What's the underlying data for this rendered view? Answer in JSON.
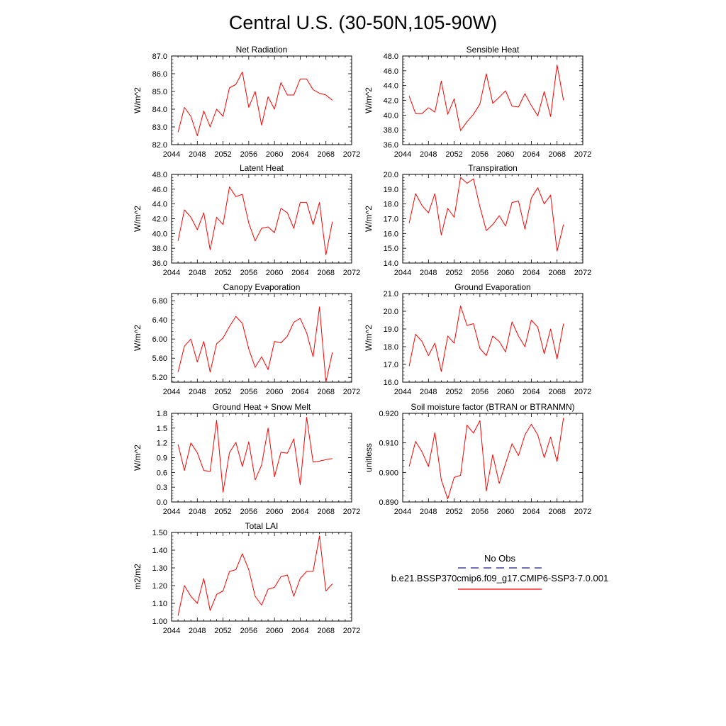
{
  "figure": {
    "title": "Central U.S. (30-50N,105-90W)"
  },
  "legend": {
    "obs_label": "No Obs",
    "obs_color": "#1a1a8c",
    "model_label": "b.e21.BSSP370cmip6.f09_g17.CMIP6-SSP3-7.0.001",
    "model_color": "#ff0000"
  },
  "chart_data": [
    {
      "type": "line",
      "title": "Net Radiation",
      "ylabel": "W/m^2",
      "xlim": [
        2044,
        2072
      ],
      "xticks": [
        2044,
        2048,
        2052,
        2056,
        2060,
        2064,
        2068,
        2072
      ],
      "ylim": [
        82.0,
        87.0
      ],
      "yticks": [
        82.0,
        83.0,
        84.0,
        85.0,
        86.0,
        87.0
      ],
      "ytick_labels": [
        "82.0",
        "83.0",
        "84.0",
        "85.0",
        "86.0",
        "87.0"
      ],
      "grid": false,
      "series": [
        {
          "x": [
            2045,
            2046,
            2047,
            2048,
            2049,
            2050,
            2051,
            2052,
            2053,
            2054,
            2055,
            2056,
            2057,
            2058,
            2059,
            2060,
            2061,
            2062,
            2063,
            2064,
            2065,
            2066,
            2067,
            2068,
            2069
          ],
          "values": [
            82.7,
            84.1,
            83.6,
            82.5,
            83.9,
            83.0,
            84.0,
            83.6,
            85.2,
            85.4,
            86.1,
            84.1,
            85.0,
            83.1,
            84.7,
            84.0,
            85.5,
            84.8,
            84.8,
            85.7,
            85.7,
            85.1,
            84.9,
            84.8,
            84.5
          ]
        }
      ]
    },
    {
      "type": "line",
      "title": "Sensible Heat",
      "ylabel": "W/m^2",
      "xlim": [
        2044,
        2072
      ],
      "xticks": [
        2044,
        2048,
        2052,
        2056,
        2060,
        2064,
        2068,
        2072
      ],
      "ylim": [
        36.0,
        48.0
      ],
      "yticks": [
        36.0,
        38.0,
        40.0,
        42.0,
        44.0,
        46.0,
        48.0
      ],
      "ytick_labels": [
        "36.0",
        "38.0",
        "40.0",
        "42.0",
        "44.0",
        "46.0",
        "48.0"
      ],
      "grid": false,
      "series": [
        {
          "x": [
            2045,
            2046,
            2047,
            2048,
            2049,
            2050,
            2051,
            2052,
            2053,
            2054,
            2055,
            2056,
            2057,
            2058,
            2059,
            2060,
            2061,
            2062,
            2063,
            2064,
            2065,
            2066,
            2067,
            2068,
            2069
          ],
          "values": [
            42.6,
            40.2,
            40.2,
            41.0,
            40.4,
            44.6,
            40.1,
            42.2,
            37.9,
            39.1,
            40.1,
            41.5,
            45.6,
            41.6,
            42.4,
            43.3,
            41.2,
            41.1,
            42.9,
            41.3,
            39.9,
            43.2,
            39.8,
            46.8,
            42.0
          ]
        }
      ]
    },
    {
      "type": "line",
      "title": "Latent Heat",
      "ylabel": "W/m^2",
      "xlim": [
        2044,
        2072
      ],
      "xticks": [
        2044,
        2048,
        2052,
        2056,
        2060,
        2064,
        2068,
        2072
      ],
      "ylim": [
        36.0,
        48.0
      ],
      "yticks": [
        36.0,
        38.0,
        40.0,
        42.0,
        44.0,
        46.0,
        48.0
      ],
      "ytick_labels": [
        "36.0",
        "38.0",
        "40.0",
        "42.0",
        "44.0",
        "46.0",
        "48.0"
      ],
      "grid": false,
      "series": [
        {
          "x": [
            2045,
            2046,
            2047,
            2048,
            2049,
            2050,
            2051,
            2052,
            2053,
            2054,
            2055,
            2056,
            2057,
            2058,
            2059,
            2060,
            2061,
            2062,
            2063,
            2064,
            2065,
            2066,
            2067,
            2068,
            2069
          ],
          "values": [
            39.0,
            43.2,
            42.2,
            40.5,
            42.8,
            37.8,
            42.2,
            41.2,
            46.3,
            45.0,
            45.3,
            41.4,
            39.0,
            40.7,
            40.9,
            40.1,
            43.4,
            42.8,
            40.7,
            44.2,
            44.2,
            41.2,
            44.2,
            37.1,
            41.6
          ]
        }
      ]
    },
    {
      "type": "line",
      "title": "Transpiration",
      "ylabel": "W/m^2",
      "xlim": [
        2044,
        2072
      ],
      "xticks": [
        2044,
        2048,
        2052,
        2056,
        2060,
        2064,
        2068,
        2072
      ],
      "ylim": [
        14.0,
        20.0
      ],
      "yticks": [
        14.0,
        15.0,
        16.0,
        17.0,
        18.0,
        19.0,
        20.0
      ],
      "ytick_labels": [
        "14.0",
        "15.0",
        "16.0",
        "17.0",
        "18.0",
        "19.0",
        "20.0"
      ],
      "grid": false,
      "series": [
        {
          "x": [
            2045,
            2046,
            2047,
            2048,
            2049,
            2050,
            2051,
            2052,
            2053,
            2054,
            2055,
            2056,
            2057,
            2058,
            2059,
            2060,
            2061,
            2062,
            2063,
            2064,
            2065,
            2066,
            2067,
            2068,
            2069
          ],
          "values": [
            16.7,
            18.7,
            17.9,
            17.4,
            18.7,
            15.9,
            17.7,
            17.1,
            19.8,
            19.4,
            19.7,
            17.8,
            16.2,
            16.6,
            17.2,
            16.5,
            18.1,
            18.2,
            16.3,
            18.4,
            19.1,
            18.0,
            18.6,
            14.8,
            16.6
          ]
        }
      ]
    },
    {
      "type": "line",
      "title": "Canopy Evaporation",
      "ylabel": "W/m^2",
      "xlim": [
        2044,
        2072
      ],
      "xticks": [
        2044,
        2048,
        2052,
        2056,
        2060,
        2064,
        2068,
        2072
      ],
      "ylim": [
        5.1,
        6.95
      ],
      "yticks": [
        5.2,
        5.6,
        6.0,
        6.4,
        6.8
      ],
      "ytick_labels": [
        "5.20",
        "5.60",
        "6.00",
        "6.40",
        "6.80"
      ],
      "grid": false,
      "series": [
        {
          "x": [
            2045,
            2046,
            2047,
            2048,
            2049,
            2050,
            2051,
            2052,
            2053,
            2054,
            2055,
            2056,
            2057,
            2058,
            2059,
            2060,
            2061,
            2062,
            2063,
            2064,
            2065,
            2066,
            2067,
            2068,
            2069
          ],
          "values": [
            5.31,
            5.85,
            6.0,
            5.52,
            5.95,
            5.31,
            5.9,
            6.02,
            6.26,
            6.47,
            6.33,
            5.79,
            5.41,
            5.63,
            5.36,
            5.95,
            5.92,
            6.06,
            6.35,
            6.43,
            6.13,
            5.63,
            6.67,
            5.1,
            5.72
          ]
        }
      ]
    },
    {
      "type": "line",
      "title": "Ground Evaporation",
      "ylabel": "W/m^2",
      "xlim": [
        2044,
        2072
      ],
      "xticks": [
        2044,
        2048,
        2052,
        2056,
        2060,
        2064,
        2068,
        2072
      ],
      "ylim": [
        16.0,
        21.0
      ],
      "yticks": [
        16.0,
        17.0,
        18.0,
        19.0,
        20.0,
        21.0
      ],
      "ytick_labels": [
        "16.0",
        "17.0",
        "18.0",
        "19.0",
        "20.0",
        "21.0"
      ],
      "grid": false,
      "series": [
        {
          "x": [
            2045,
            2046,
            2047,
            2048,
            2049,
            2050,
            2051,
            2052,
            2053,
            2054,
            2055,
            2056,
            2057,
            2058,
            2059,
            2060,
            2061,
            2062,
            2063,
            2064,
            2065,
            2066,
            2067,
            2068,
            2069
          ],
          "values": [
            16.9,
            18.7,
            18.3,
            17.5,
            18.2,
            16.6,
            18.6,
            18.2,
            20.3,
            19.2,
            19.3,
            17.9,
            17.5,
            18.6,
            18.3,
            17.7,
            19.4,
            18.6,
            18.0,
            19.5,
            19.1,
            17.6,
            19.0,
            17.3,
            19.3
          ]
        }
      ]
    },
    {
      "type": "line",
      "title": "Ground Heat + Snow Melt",
      "ylabel": "W/m^2",
      "xlim": [
        2044,
        2072
      ],
      "xticks": [
        2044,
        2048,
        2052,
        2056,
        2060,
        2064,
        2068,
        2072
      ],
      "ylim": [
        0.0,
        1.8
      ],
      "yticks": [
        0.0,
        0.3,
        0.6,
        0.9,
        1.2,
        1.5,
        1.8
      ],
      "ytick_labels": [
        "0.0",
        "0.3",
        "0.6",
        "0.9",
        "1.2",
        "1.5",
        "1.8"
      ],
      "grid": false,
      "series": [
        {
          "x": [
            2045,
            2046,
            2047,
            2048,
            2049,
            2050,
            2051,
            2052,
            2053,
            2054,
            2055,
            2056,
            2057,
            2058,
            2059,
            2060,
            2061,
            2062,
            2063,
            2064,
            2065,
            2066,
            2067,
            2068,
            2069
          ],
          "values": [
            1.17,
            0.64,
            1.2,
            1.0,
            0.64,
            0.62,
            1.66,
            0.2,
            1.0,
            1.21,
            0.72,
            1.22,
            0.45,
            0.75,
            1.5,
            0.51,
            1.01,
            0.99,
            1.28,
            0.35,
            1.72,
            0.81,
            0.83,
            0.86,
            0.88
          ]
        }
      ]
    },
    {
      "type": "line",
      "title": "Soil moisture factor (BTRAN or BTRANMN)",
      "ylabel": "unitless",
      "xlim": [
        2044,
        2072
      ],
      "xticks": [
        2044,
        2048,
        2052,
        2056,
        2060,
        2064,
        2068,
        2072
      ],
      "ylim": [
        0.89,
        0.92
      ],
      "yticks": [
        0.89,
        0.9,
        0.91,
        0.92
      ],
      "ytick_labels": [
        "0.890",
        "0.900",
        "0.910",
        "0.920"
      ],
      "grid": false,
      "series": [
        {
          "x": [
            2045,
            2046,
            2047,
            2048,
            2049,
            2050,
            2051,
            2052,
            2053,
            2054,
            2055,
            2056,
            2057,
            2058,
            2059,
            2060,
            2061,
            2062,
            2063,
            2064,
            2065,
            2066,
            2067,
            2068,
            2069
          ],
          "values": [
            0.902,
            0.9105,
            0.907,
            0.902,
            0.9135,
            0.8975,
            0.891,
            0.8983,
            0.899,
            0.916,
            0.9133,
            0.9175,
            0.8937,
            0.906,
            0.8963,
            0.903,
            0.9097,
            0.9057,
            0.9127,
            0.9163,
            0.9127,
            0.905,
            0.912,
            0.9037,
            0.9185
          ]
        }
      ]
    },
    {
      "type": "line",
      "title": "Total LAI",
      "ylabel": "m2/m2",
      "xlim": [
        2044,
        2072
      ],
      "xticks": [
        2044,
        2048,
        2052,
        2056,
        2060,
        2064,
        2068,
        2072
      ],
      "ylim": [
        1.0,
        1.5
      ],
      "yticks": [
        1.0,
        1.1,
        1.2,
        1.3,
        1.4,
        1.5
      ],
      "ytick_labels": [
        "1.00",
        "1.10",
        "1.20",
        "1.30",
        "1.40",
        "1.50"
      ],
      "grid": false,
      "series": [
        {
          "x": [
            2045,
            2046,
            2047,
            2048,
            2049,
            2050,
            2051,
            2052,
            2053,
            2054,
            2055,
            2056,
            2057,
            2058,
            2059,
            2060,
            2061,
            2062,
            2063,
            2064,
            2065,
            2066,
            2067,
            2068,
            2069
          ],
          "values": [
            1.03,
            1.2,
            1.14,
            1.1,
            1.24,
            1.06,
            1.15,
            1.17,
            1.28,
            1.29,
            1.38,
            1.29,
            1.14,
            1.09,
            1.18,
            1.19,
            1.25,
            1.26,
            1.14,
            1.24,
            1.28,
            1.28,
            1.48,
            1.17,
            1.21
          ]
        }
      ]
    }
  ]
}
